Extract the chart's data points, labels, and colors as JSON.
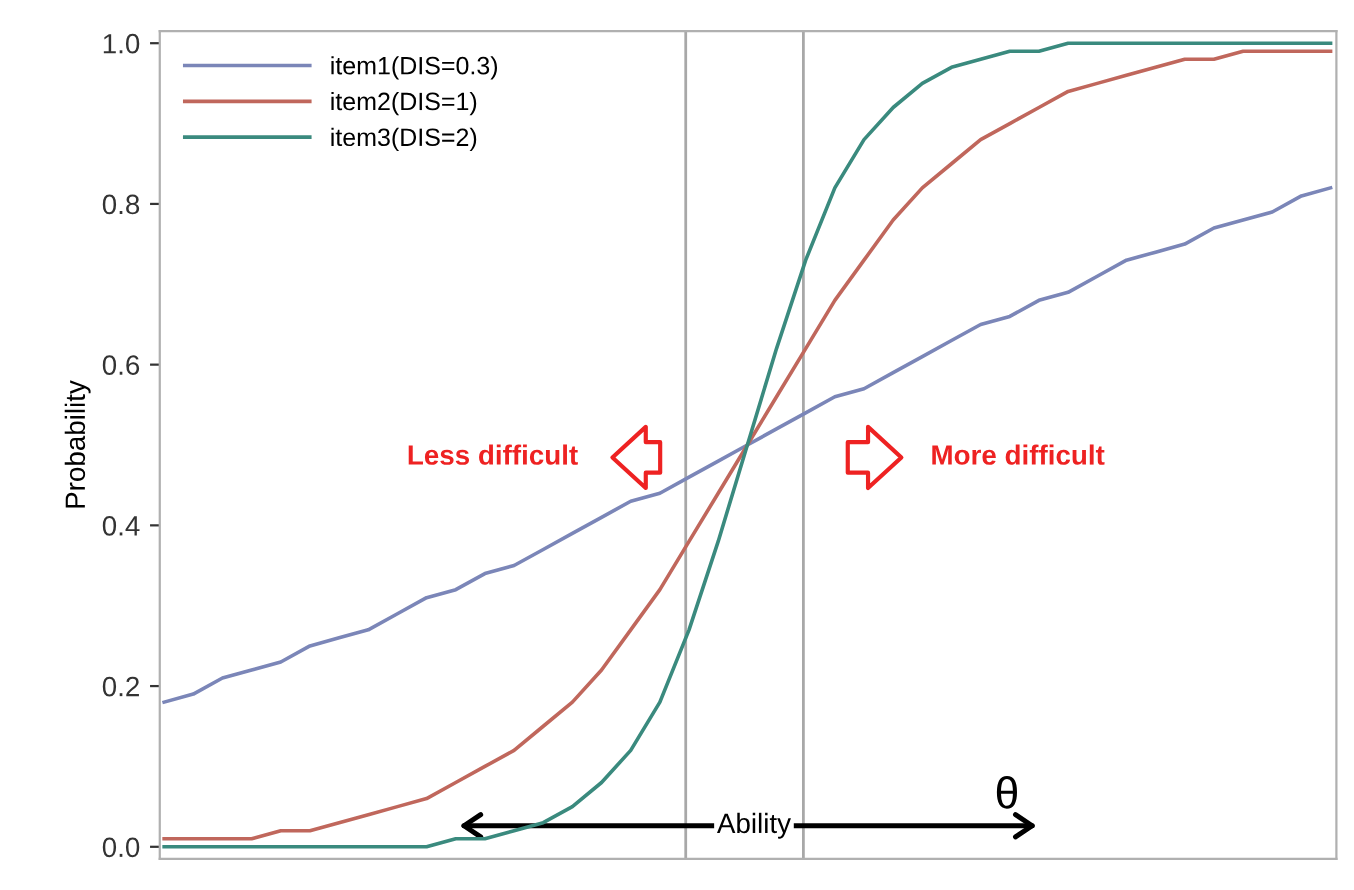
{
  "chart_data": {
    "type": "line",
    "ylabel": "Probability",
    "categories": [
      null,
      null,
      null,
      null,
      null,
      null,
      null,
      null,
      null,
      null,
      null,
      null,
      null,
      null,
      null,
      null,
      null,
      null,
      null,
      null,
      null,
      null,
      null,
      null,
      null,
      null,
      null,
      null,
      null,
      null,
      null,
      null,
      null,
      null,
      null,
      null,
      null,
      null,
      null,
      null,
      null
    ],
    "series": [
      {
        "name": "item1(DIS=0.3)",
        "color": "#7b86b8",
        "values": [
          0.18,
          0.19,
          0.21,
          0.22,
          0.23,
          0.25,
          0.26,
          0.27,
          0.29,
          0.31,
          0.32,
          0.34,
          0.35,
          0.37,
          0.39,
          0.41,
          0.43,
          0.44,
          0.46,
          0.48,
          0.5,
          0.52,
          0.54,
          0.56,
          0.57,
          0.59,
          0.61,
          0.63,
          0.65,
          0.66,
          0.68,
          0.69,
          0.71,
          0.73,
          0.74,
          0.75,
          0.77,
          0.78,
          0.79,
          0.81,
          0.82
        ]
      },
      {
        "name": "item2(DIS=1)",
        "color": "#c0675c",
        "values": [
          0.01,
          0.01,
          0.01,
          0.01,
          0.02,
          0.02,
          0.03,
          0.04,
          0.05,
          0.06,
          0.08,
          0.1,
          0.12,
          0.15,
          0.18,
          0.22,
          0.27,
          0.32,
          0.38,
          0.44,
          0.5,
          0.56,
          0.62,
          0.68,
          0.73,
          0.78,
          0.82,
          0.85,
          0.88,
          0.9,
          0.92,
          0.94,
          0.95,
          0.96,
          0.97,
          0.98,
          0.98,
          0.99,
          0.99,
          0.99,
          0.99
        ]
      },
      {
        "name": "item3(DIS=2)",
        "color": "#3a8a7e",
        "values": [
          0.0,
          0.0,
          0.0,
          0.0,
          0.0,
          0.0,
          0.0,
          0.0,
          0.0,
          0.0,
          0.01,
          0.01,
          0.02,
          0.03,
          0.05,
          0.08,
          0.12,
          0.18,
          0.27,
          0.38,
          0.5,
          0.62,
          0.73,
          0.82,
          0.88,
          0.92,
          0.95,
          0.97,
          0.98,
          0.99,
          0.99,
          1.0,
          1.0,
          1.0,
          1.0,
          1.0,
          1.0,
          1.0,
          1.0,
          1.0,
          1.0
        ]
      }
    ],
    "ylim": [
      -0.015,
      1.015
    ],
    "yticks": [
      {
        "value": 0,
        "label": "0.0"
      },
      0.2,
      0.4,
      0.6,
      0.8,
      {
        "value": 1,
        "label": "1.0"
      }
    ],
    "annotations": [
      "Less difficult",
      "More difficult",
      "Ability",
      "θ"
    ],
    "legend": "top left",
    "grid": false,
    "tick_labels": "y"
  }
}
